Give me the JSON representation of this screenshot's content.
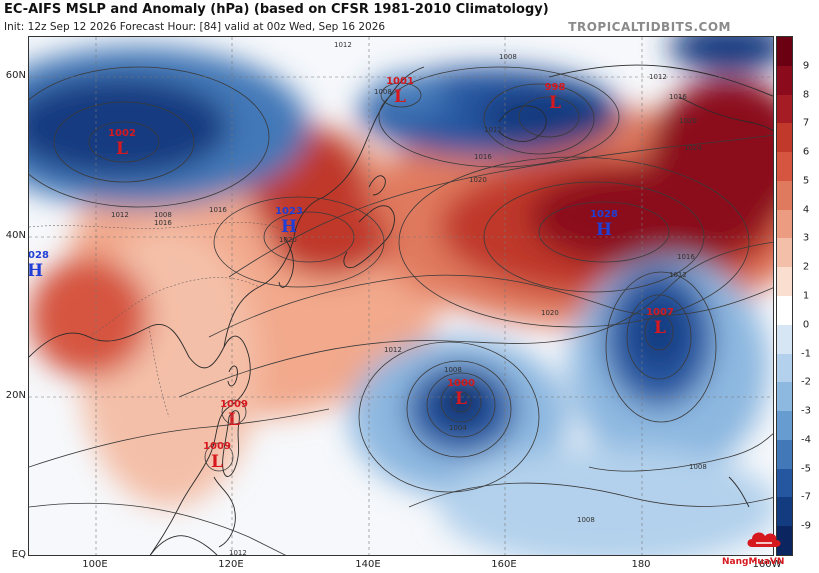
{
  "header": {
    "title": "EC-AIFS MSLP and Anomaly (hPa) (based on CFSR 1981-2010 Climatology)",
    "subtitle": "Init: 12z Sep 12 2026   Forecast Hour: [84]   valid at 00z Wed, Sep 16 2026",
    "brand": "TROPICALTIDBITS.COM"
  },
  "axes": {
    "lat_labels": [
      "60N",
      "40N",
      "20N",
      "EQ"
    ],
    "lon_labels": [
      "100E",
      "120E",
      "140E",
      "160E",
      "180",
      "160W"
    ]
  },
  "colorbar": {
    "ticks": [
      "9",
      "8",
      "7",
      "6",
      "5",
      "4",
      "3",
      "2",
      "1",
      "0",
      "-1",
      "-2",
      "-3",
      "-4",
      "-5",
      "-7",
      "-9"
    ],
    "colors": [
      "#6a0012",
      "#8b0a1c",
      "#a61c24",
      "#c0392b",
      "#d55540",
      "#e07a5f",
      "#ec9c80",
      "#f4bfa8",
      "#fadfd0",
      "#ffffff",
      "#d6e6f5",
      "#b3d1ec",
      "#8db8e0",
      "#669ccf",
      "#4278b8",
      "#2556a0",
      "#123b80",
      "#0b2560"
    ]
  },
  "systems": [
    {
      "type": "L",
      "pressure": "1002",
      "color": "#d6191f"
    },
    {
      "type": "L",
      "pressure": "1001",
      "color": "#d6191f"
    },
    {
      "type": "L",
      "pressure": "998",
      "color": "#d6191f"
    },
    {
      "type": "H",
      "pressure": "1023",
      "color": "#1f3fd6"
    },
    {
      "type": "H",
      "pressure": "1028",
      "color": "#1f3fd6"
    },
    {
      "type": "H",
      "pressure": "1028",
      "color": "#1f3fd6"
    },
    {
      "type": "L",
      "pressure": "1007",
      "color": "#d6191f"
    },
    {
      "type": "L",
      "pressure": "1000",
      "color": "#d6191f"
    },
    {
      "type": "L",
      "pressure": "1009",
      "color": "#d6191f"
    },
    {
      "type": "L",
      "pressure": "1009",
      "color": "#d6191f"
    }
  ],
  "isobars": {
    "labels": [
      "1012",
      "1008",
      "1012",
      "1016",
      "1012",
      "1020",
      "1016",
      "1024",
      "1020",
      "1016",
      "1012",
      "1020",
      "1016",
      "1012",
      "1008",
      "1004",
      "1008",
      "1008",
      "1012",
      "1016",
      "1020",
      "1012",
      "1008",
      "1008"
    ]
  },
  "watermark": {
    "text": "NangMuaVN"
  }
}
